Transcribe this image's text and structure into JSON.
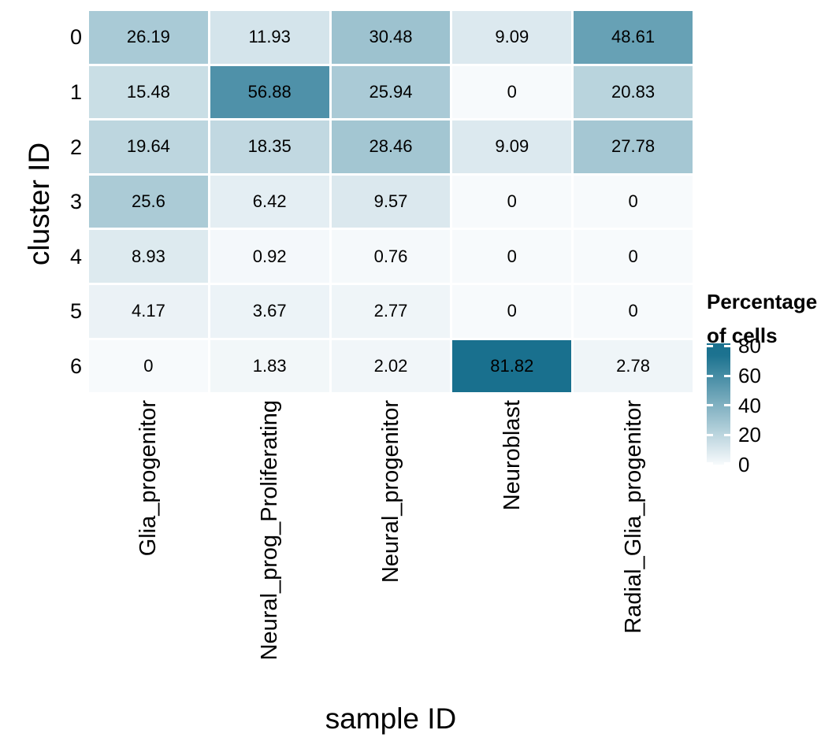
{
  "chart_data": {
    "type": "heatmap",
    "title": "",
    "xlabel": "sample ID",
    "ylabel": "cluster ID",
    "columns": [
      "Glia_progenitor",
      "Neural_prog_Proliferating",
      "Neural_progenitor",
      "Neuroblast",
      "Radial_Glia_progenitor"
    ],
    "rows": [
      "0",
      "1",
      "2",
      "3",
      "4",
      "5",
      "6"
    ],
    "values": [
      [
        26.19,
        11.93,
        30.48,
        9.09,
        48.61
      ],
      [
        15.48,
        56.88,
        25.94,
        0,
        20.83
      ],
      [
        19.64,
        18.35,
        28.46,
        9.09,
        27.78
      ],
      [
        25.6,
        6.42,
        9.57,
        0,
        0
      ],
      [
        8.93,
        0.92,
        0.76,
        0,
        0
      ],
      [
        4.17,
        3.67,
        2.77,
        0,
        0
      ],
      [
        0,
        1.83,
        2.02,
        81.82,
        2.78
      ]
    ],
    "cell_labels": [
      [
        "26.19",
        "11.93",
        "30.48",
        "9.09",
        "48.61"
      ],
      [
        "15.48",
        "56.88",
        "25.94",
        "0",
        "20.83"
      ],
      [
        "19.64",
        "18.35",
        "28.46",
        "9.09",
        "27.78"
      ],
      [
        "25.6",
        "6.42",
        "9.57",
        "0",
        "0"
      ],
      [
        "8.93",
        "0.92",
        "0.76",
        "0",
        "0"
      ],
      [
        "4.17",
        "3.67",
        "2.77",
        "0",
        "0"
      ],
      [
        "0",
        "1.83",
        "2.02",
        "81.82",
        "2.78"
      ]
    ],
    "legend": {
      "title_line1": "Percentage",
      "title_line2": "of cells",
      "ticks": [
        "80",
        "60",
        "40",
        "20",
        "0"
      ],
      "tick_values": [
        80,
        60,
        40,
        20,
        0
      ],
      "scale_max": 81.82,
      "position": "right"
    },
    "colors": {
      "low": "#F7FAFC",
      "high": "#19708E",
      "gap": "#FFFFFF",
      "cell_text": "#000000",
      "axis_text": "#000000",
      "legend_tick_mark": "#FFFFFF",
      "color_divisor": 75
    },
    "layout": {
      "grid_on": false,
      "legend_position": "right",
      "x_labels_rotated_deg": 90
    }
  }
}
